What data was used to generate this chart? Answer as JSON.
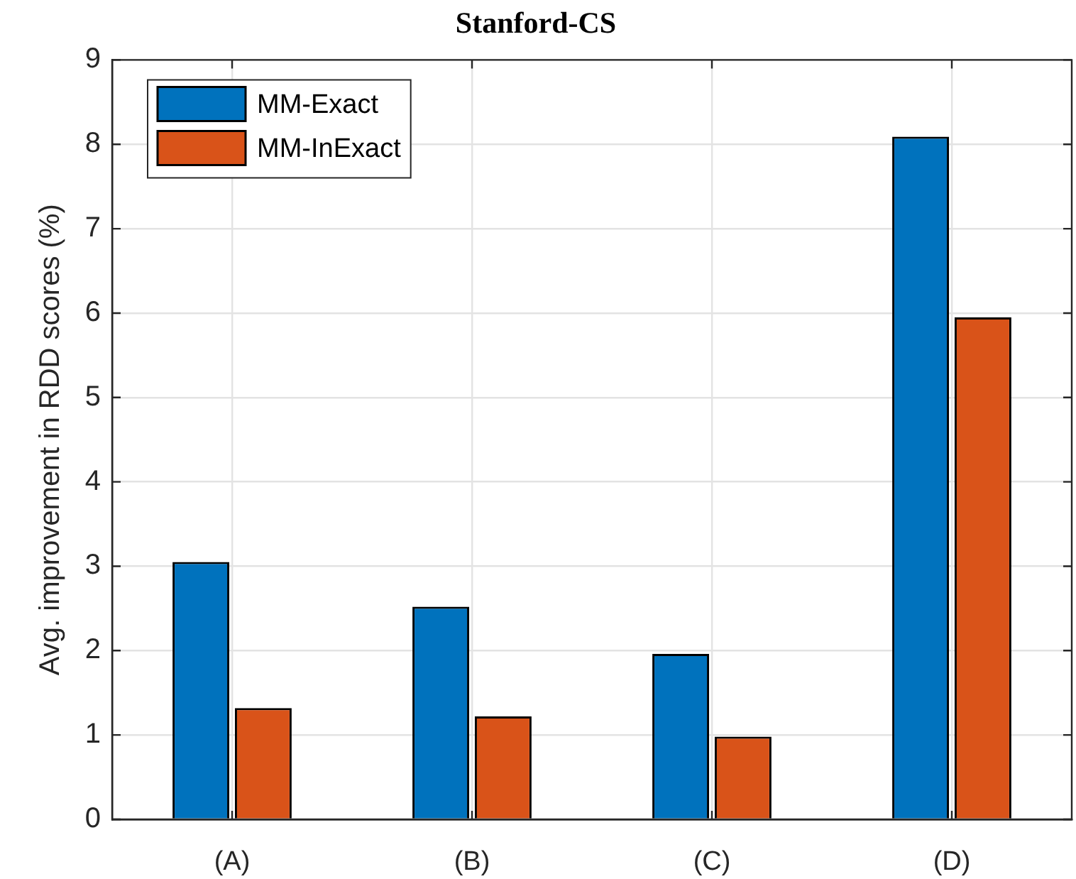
{
  "chart_data": {
    "type": "bar",
    "title": "Stanford-CS",
    "ylabel": "Avg. improvement in RDD scores (%)",
    "categories": [
      "(A)",
      "(B)",
      "(C)",
      "(D)"
    ],
    "series": [
      {
        "name": "MM-Exact",
        "color": "#0072bd",
        "values": [
          3.05,
          2.52,
          1.96,
          8.09
        ]
      },
      {
        "name": "MM-InExact",
        "color": "#d95319",
        "values": [
          1.32,
          1.22,
          0.98,
          5.95
        ]
      }
    ],
    "ylim": [
      0,
      9
    ],
    "yticks": [
      0,
      1,
      2,
      3,
      4,
      5,
      6,
      7,
      8,
      9
    ],
    "grid": true,
    "legend": "top left"
  }
}
